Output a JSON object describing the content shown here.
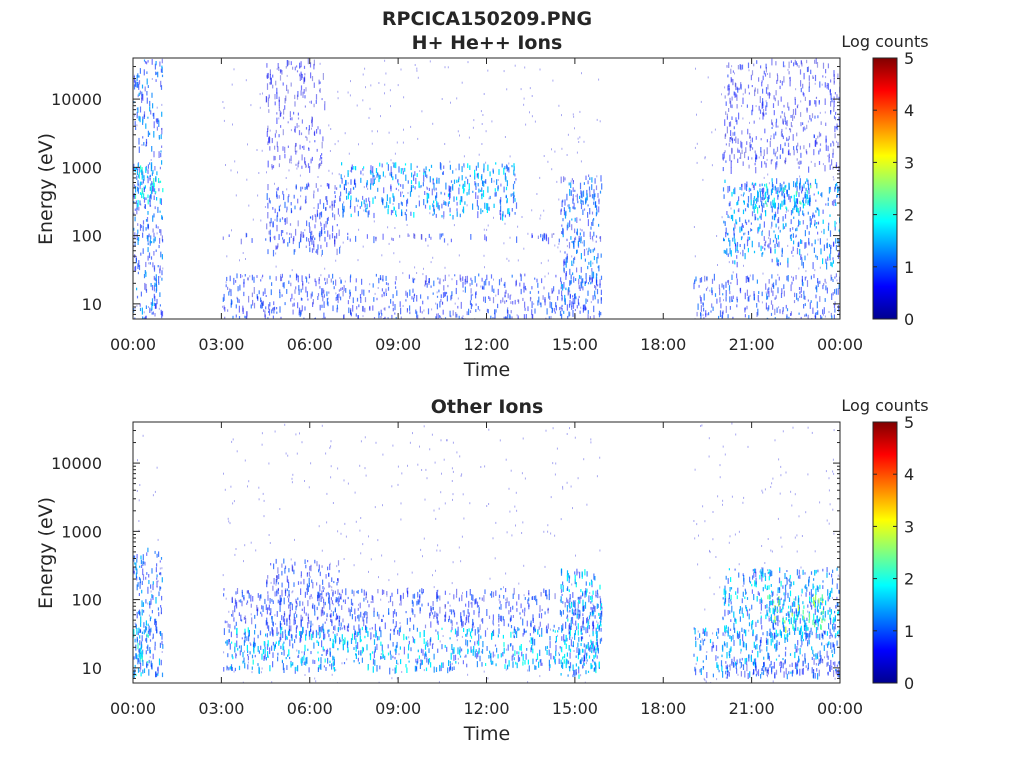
{
  "figure": {
    "filename_title": "RPCICA150209.PNG",
    "colorbar_title": "Log counts",
    "colorbar_ticks": [
      "0",
      "1",
      "2",
      "3",
      "4",
      "5"
    ],
    "colormap": [
      "#00008f",
      "#0000ff",
      "#0080ff",
      "#00ffff",
      "#80ff80",
      "#ffff00",
      "#ff8000",
      "#ff0000",
      "#800000"
    ]
  },
  "chart_data": [
    {
      "type": "heatmap",
      "title": "H+ He++ Ions",
      "xlabel": "Time",
      "ylabel": "Energy (eV)",
      "x_tick_labels": [
        "00:00",
        "03:00",
        "06:00",
        "09:00",
        "12:00",
        "15:00",
        "18:00",
        "21:00",
        "00:00"
      ],
      "xlim_hours": [
        0,
        24
      ],
      "y_scale": "log",
      "y_tick_labels": [
        "10",
        "100",
        "1000",
        "10000"
      ],
      "ylim_eV": [
        6,
        40000
      ],
      "colorbar": {
        "label": "Log counts",
        "range": [
          0,
          5
        ]
      },
      "data_gaps_hours": [
        [
          1,
          3
        ],
        [
          15.9,
          19
        ]
      ],
      "activity_regions": [
        {
          "t": [
            0.0,
            1.0
          ],
          "e": [
            6,
            40000
          ],
          "level": 1.2
        },
        {
          "t": [
            0.0,
            1.0
          ],
          "e": [
            300,
            1100
          ],
          "level": 1.8
        },
        {
          "t": [
            3.0,
            15.9
          ],
          "e": [
            6,
            28
          ],
          "level": 0.9
        },
        {
          "t": [
            3.0,
            15.9
          ],
          "e": [
            90,
            110
          ],
          "level": 0.8
        },
        {
          "t": [
            4.5,
            7.0
          ],
          "e": [
            60,
            600
          ],
          "level": 0.9
        },
        {
          "t": [
            4.5,
            6.5
          ],
          "e": [
            1000,
            40000
          ],
          "level": 0.6
        },
        {
          "t": [
            7.0,
            13.0
          ],
          "e": [
            200,
            1200
          ],
          "level": 1.5
        },
        {
          "t": [
            14.5,
            15.9
          ],
          "e": [
            6,
            800
          ],
          "level": 1.2
        },
        {
          "t": [
            19.0,
            24.0
          ],
          "e": [
            6,
            28
          ],
          "level": 1.0
        },
        {
          "t": [
            20.0,
            24.0
          ],
          "e": [
            40,
            700
          ],
          "level": 1.4
        },
        {
          "t": [
            21.0,
            23.0
          ],
          "e": [
            250,
            600
          ],
          "level": 1.9
        },
        {
          "t": [
            20.0,
            24.0
          ],
          "e": [
            1000,
            40000
          ],
          "level": 0.7
        }
      ]
    },
    {
      "type": "heatmap",
      "title": "Other Ions",
      "xlabel": "Time",
      "ylabel": "Energy (eV)",
      "x_tick_labels": [
        "00:00",
        "03:00",
        "06:00",
        "09:00",
        "12:00",
        "15:00",
        "18:00",
        "21:00",
        "00:00"
      ],
      "xlim_hours": [
        0,
        24
      ],
      "y_scale": "log",
      "y_tick_labels": [
        "10",
        "100",
        "1000",
        "10000"
      ],
      "ylim_eV": [
        6,
        40000
      ],
      "colorbar": {
        "label": "Log counts",
        "range": [
          0,
          5
        ]
      },
      "data_gaps_hours": [
        [
          1,
          3
        ],
        [
          15.9,
          19
        ]
      ],
      "activity_regions": [
        {
          "t": [
            0.0,
            1.0
          ],
          "e": [
            8,
            600
          ],
          "level": 1.3
        },
        {
          "t": [
            0.0,
            0.6
          ],
          "e": [
            8,
            60
          ],
          "level": 1.8
        },
        {
          "t": [
            3.0,
            15.9
          ],
          "e": [
            10,
            40
          ],
          "level": 1.6
        },
        {
          "t": [
            3.0,
            15.9
          ],
          "e": [
            40,
            150
          ],
          "level": 0.9
        },
        {
          "t": [
            4.5,
            7.0
          ],
          "e": [
            30,
            400
          ],
          "level": 0.9
        },
        {
          "t": [
            14.5,
            15.9
          ],
          "e": [
            8,
            300
          ],
          "level": 1.6
        },
        {
          "t": [
            19.0,
            24.0
          ],
          "e": [
            8,
            40
          ],
          "level": 1.4
        },
        {
          "t": [
            20.0,
            24.0
          ],
          "e": [
            30,
            300
          ],
          "level": 1.6
        },
        {
          "t": [
            21.5,
            23.5
          ],
          "e": [
            40,
            120
          ],
          "level": 2.3
        },
        {
          "t": [
            20.0,
            24.0
          ],
          "e": [
            8,
            14
          ],
          "level": 0.8
        }
      ]
    }
  ]
}
